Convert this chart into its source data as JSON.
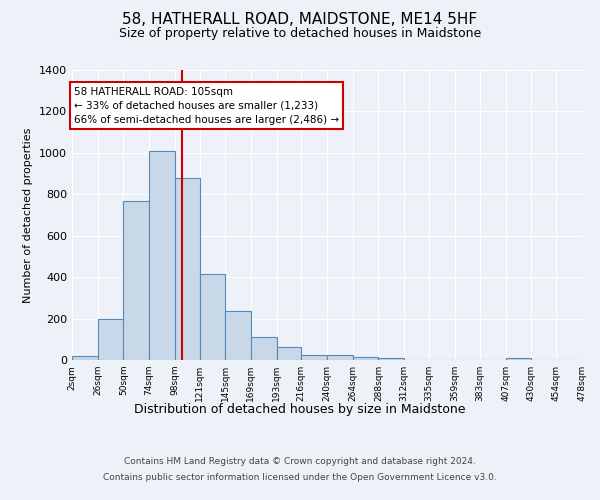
{
  "title": "58, HATHERALL ROAD, MAIDSTONE, ME14 5HF",
  "subtitle": "Size of property relative to detached houses in Maidstone",
  "xlabel": "Distribution of detached houses by size in Maidstone",
  "ylabel": "Number of detached properties",
  "bar_color": "#c8d8e8",
  "bar_edge_color": "#5588bb",
  "background_color": "#eef2f8",
  "grid_color": "#ffffff",
  "vline_x": 105,
  "vline_color": "#cc0000",
  "annotation_title": "58 HATHERALL ROAD: 105sqm",
  "annotation_line1": "← 33% of detached houses are smaller (1,233)",
  "annotation_line2": "66% of semi-detached houses are larger (2,486) →",
  "annotation_box_color": "#ffffff",
  "annotation_box_edge": "#cc0000",
  "bin_edges": [
    2,
    26,
    50,
    74,
    98,
    121,
    145,
    169,
    193,
    216,
    240,
    264,
    288,
    312,
    335,
    359,
    383,
    407,
    430,
    454,
    478
  ],
  "bar_heights": [
    20,
    200,
    770,
    1010,
    880,
    415,
    235,
    110,
    65,
    25,
    25,
    15,
    10,
    0,
    0,
    0,
    0,
    10,
    0,
    0
  ],
  "ylim": [
    0,
    1400
  ],
  "yticks": [
    0,
    200,
    400,
    600,
    800,
    1000,
    1200,
    1400
  ],
  "footer_line1": "Contains HM Land Registry data © Crown copyright and database right 2024.",
  "footer_line2": "Contains public sector information licensed under the Open Government Licence v3.0."
}
